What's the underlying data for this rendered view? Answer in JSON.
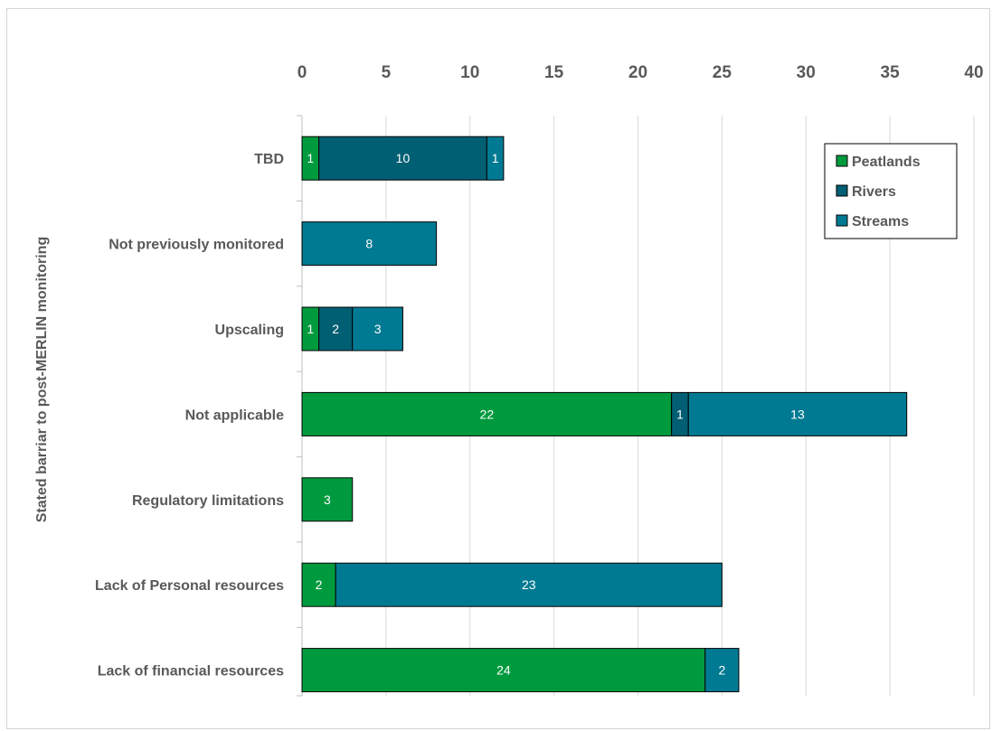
{
  "chart_data": {
    "type": "bar",
    "orientation": "horizontal",
    "stacked": true,
    "title": "",
    "xlabel": "",
    "ylabel": "Stated barriar to post-MERLIN monitoring",
    "xlim": [
      0,
      40
    ],
    "xticks": [
      "0",
      "5",
      "10",
      "15",
      "20",
      "25",
      "30",
      "35",
      "40"
    ],
    "grid": true,
    "legend_position": "top-right",
    "categories": [
      "TBD",
      "Not previously monitored",
      "Upscaling",
      "Not applicable",
      "Regulatory limitations",
      "Lack of Personal resources",
      "Lack of financial resources"
    ],
    "series": [
      {
        "name": "Peatlands",
        "color": "#009a3e",
        "values": [
          1,
          0,
          1,
          22,
          3,
          2,
          24
        ]
      },
      {
        "name": "Rivers",
        "color": "#005f73",
        "values": [
          10,
          0,
          2,
          1,
          0,
          0,
          0
        ]
      },
      {
        "name": "Streams",
        "color": "#007a92",
        "values": [
          1,
          8,
          3,
          13,
          0,
          23,
          2
        ]
      }
    ]
  }
}
